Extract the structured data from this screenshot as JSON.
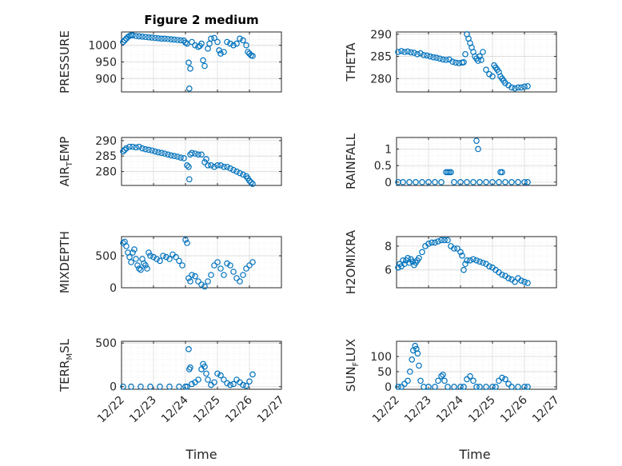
{
  "figure": {
    "title": "Figure 2 medium",
    "marker_color": "#0072BD",
    "x_tick_labels": [
      "12/22",
      "12/23",
      "12/24",
      "12/25",
      "12/26",
      "12/27"
    ],
    "xlabel": "Time"
  },
  "chart_data": [
    {
      "type": "scatter",
      "ylabel": "PRESSURE",
      "ylabel_parts": [
        {
          "text": "PRESSURE",
          "sub": false
        }
      ],
      "title": "Figure 2 medium",
      "xlim": [
        0,
        5
      ],
      "ylim": [
        860,
        1040
      ],
      "yticks": [
        900,
        950,
        1000
      ],
      "grid": true,
      "x": [
        0.05,
        0.1,
        0.15,
        0.2,
        0.25,
        0.3,
        0.35,
        0.45,
        0.55,
        0.65,
        0.75,
        0.85,
        0.95,
        1.05,
        1.15,
        1.25,
        1.35,
        1.45,
        1.55,
        1.65,
        1.75,
        1.85,
        1.95,
        2.0,
        2.05,
        2.1,
        2.12,
        2.15,
        2.2,
        2.3,
        2.4,
        2.45,
        2.5,
        2.55,
        2.6,
        2.7,
        2.75,
        2.8,
        2.9,
        3.0,
        3.05,
        3.1,
        3.2,
        3.3,
        3.4,
        3.5,
        3.6,
        3.7,
        3.8,
        3.9,
        3.95,
        4.0,
        4.05,
        4.1
      ],
      "y": [
        1010,
        1015,
        1020,
        1025,
        1028,
        1030,
        1030,
        1028,
        1027,
        1026,
        1025,
        1024,
        1023,
        1022,
        1021,
        1020,
        1020,
        1019,
        1018,
        1017,
        1016,
        1015,
        1014,
        1008,
        1005,
        948,
        870,
        930,
        1010,
        1000,
        995,
        998,
        1005,
        955,
        938,
        990,
        1005,
        1020,
        1022,
        1010,
        985,
        975,
        980,
        1010,
        1005,
        1000,
        1005,
        1020,
        1015,
        1000,
        980,
        975,
        970,
        968
      ]
    },
    {
      "type": "scatter",
      "ylabel": "THETA",
      "ylabel_parts": [
        {
          "text": "THETA",
          "sub": false
        }
      ],
      "xlim": [
        0,
        5
      ],
      "ylim": [
        277,
        290.5
      ],
      "yticks": [
        280,
        285,
        290
      ],
      "grid": true,
      "x": [
        0.05,
        0.15,
        0.25,
        0.35,
        0.45,
        0.55,
        0.65,
        0.75,
        0.85,
        0.95,
        1.05,
        1.15,
        1.25,
        1.35,
        1.45,
        1.55,
        1.65,
        1.75,
        1.85,
        1.95,
        2.05,
        2.1,
        2.15,
        2.2,
        2.25,
        2.3,
        2.35,
        2.4,
        2.45,
        2.5,
        2.55,
        2.6,
        2.65,
        2.7,
        2.8,
        2.9,
        3.0,
        3.05,
        3.1,
        3.15,
        3.2,
        3.25,
        3.3,
        3.35,
        3.4,
        3.5,
        3.6,
        3.7,
        3.8,
        3.9,
        4.0,
        4.1
      ],
      "y": [
        286,
        286.2,
        286,
        286.1,
        285.9,
        285.8,
        285.5,
        285.7,
        285.3,
        285.2,
        285,
        284.8,
        284.7,
        284.5,
        284.3,
        284.2,
        284.3,
        283.8,
        283.6,
        283.5,
        283.6,
        283.7,
        285.5,
        290,
        289,
        288,
        287,
        286,
        285,
        284.5,
        284,
        285,
        284.2,
        286,
        282,
        281,
        280.5,
        283,
        282.5,
        282,
        281.5,
        280.5,
        280,
        279.5,
        279,
        278.5,
        278,
        277.8,
        278,
        278,
        278.2,
        278.3
      ]
    },
    {
      "type": "scatter",
      "ylabel": "AIR_TEMP",
      "ylabel_parts": [
        {
          "text": "AIR",
          "sub": false
        },
        {
          "text": "T",
          "sub": true
        },
        {
          "text": "EMP",
          "sub": false
        }
      ],
      "xlim": [
        0,
        5
      ],
      "ylim": [
        275.5,
        291
      ],
      "yticks": [
        280,
        285,
        290
      ],
      "grid": true,
      "x": [
        0.05,
        0.1,
        0.15,
        0.25,
        0.35,
        0.45,
        0.55,
        0.65,
        0.75,
        0.85,
        0.95,
        1.05,
        1.15,
        1.25,
        1.35,
        1.45,
        1.55,
        1.65,
        1.75,
        1.85,
        1.95,
        2.05,
        2.1,
        2.12,
        2.15,
        2.2,
        2.3,
        2.4,
        2.5,
        2.6,
        2.65,
        2.7,
        2.8,
        2.9,
        3.0,
        3.1,
        3.2,
        3.3,
        3.4,
        3.5,
        3.6,
        3.7,
        3.8,
        3.9,
        3.95,
        4.0,
        4.05,
        4.1
      ],
      "y": [
        286.5,
        287,
        287.5,
        288,
        288,
        287.8,
        288,
        287.5,
        287.2,
        287,
        286.8,
        286.5,
        286.2,
        286,
        285.8,
        285.5,
        285.2,
        285,
        284.8,
        284.5,
        284.3,
        282,
        281.5,
        277.5,
        285.5,
        286,
        285.8,
        285.5,
        285.5,
        283,
        284,
        282,
        282,
        281.5,
        282,
        282,
        281.5,
        281.5,
        281,
        280.5,
        280,
        279.5,
        279,
        278.5,
        277.8,
        277,
        276.5,
        276
      ]
    },
    {
      "type": "scatter",
      "ylabel": "RAINFALL",
      "ylabel_parts": [
        {
          "text": "RAINFALL",
          "sub": false
        }
      ],
      "xlim": [
        0,
        5
      ],
      "ylim": [
        -0.1,
        1.35
      ],
      "yticks": [
        0,
        0.5,
        1
      ],
      "grid": true,
      "x": [
        0.05,
        0.2,
        0.4,
        0.6,
        0.8,
        1.0,
        1.2,
        1.4,
        1.55,
        1.6,
        1.65,
        1.7,
        1.8,
        2.0,
        2.2,
        2.4,
        2.5,
        2.55,
        2.6,
        2.8,
        3.0,
        3.2,
        3.25,
        3.3,
        3.4,
        3.6,
        3.8,
        4.0,
        4.1
      ],
      "y": [
        0,
        0,
        0,
        0,
        0,
        0,
        0,
        0,
        0.3,
        0.3,
        0.3,
        0.3,
        0,
        0,
        0,
        0,
        1.25,
        1.0,
        0,
        0,
        0,
        0,
        0.3,
        0.3,
        0,
        0,
        0,
        0,
        0
      ]
    },
    {
      "type": "scatter",
      "ylabel": "MIXDEPTH",
      "ylabel_parts": [
        {
          "text": "MIXDEPTH",
          "sub": false
        }
      ],
      "xlim": [
        0,
        5
      ],
      "ylim": [
        0,
        800
      ],
      "yticks": [
        0,
        500
      ],
      "grid": true,
      "x": [
        0.05,
        0.1,
        0.15,
        0.2,
        0.25,
        0.3,
        0.35,
        0.4,
        0.45,
        0.5,
        0.55,
        0.6,
        0.65,
        0.7,
        0.75,
        0.8,
        0.85,
        0.9,
        1.0,
        1.1,
        1.2,
        1.3,
        1.4,
        1.5,
        1.6,
        1.7,
        1.8,
        1.9,
        2.0,
        2.05,
        2.1,
        2.15,
        2.2,
        2.3,
        2.4,
        2.5,
        2.6,
        2.7,
        2.8,
        2.9,
        3.0,
        3.1,
        3.2,
        3.3,
        3.4,
        3.5,
        3.6,
        3.7,
        3.8,
        3.9,
        4.0,
        4.1
      ],
      "y": [
        700,
        720,
        650,
        550,
        480,
        400,
        550,
        600,
        450,
        350,
        300,
        280,
        450,
        380,
        350,
        300,
        550,
        500,
        480,
        450,
        420,
        500,
        480,
        450,
        520,
        480,
        420,
        350,
        750,
        700,
        150,
        100,
        200,
        180,
        100,
        50,
        20,
        100,
        200,
        350,
        400,
        300,
        200,
        380,
        350,
        250,
        150,
        100,
        200,
        300,
        350,
        400
      ]
    },
    {
      "type": "scatter",
      "ylabel": "H2OMIXRA",
      "ylabel_parts": [
        {
          "text": "H2OMIXRA",
          "sub": false
        }
      ],
      "xlim": [
        0,
        5
      ],
      "ylim": [
        4.5,
        8.8
      ],
      "yticks": [
        6,
        8
      ],
      "grid": true,
      "x": [
        0.05,
        0.1,
        0.15,
        0.2,
        0.25,
        0.3,
        0.35,
        0.4,
        0.45,
        0.5,
        0.55,
        0.6,
        0.65,
        0.7,
        0.8,
        0.9,
        1.0,
        1.1,
        1.2,
        1.3,
        1.4,
        1.5,
        1.6,
        1.7,
        1.8,
        1.9,
        2.0,
        2.05,
        2.1,
        2.15,
        2.2,
        2.3,
        2.4,
        2.5,
        2.6,
        2.7,
        2.8,
        2.9,
        3.0,
        3.1,
        3.2,
        3.3,
        3.4,
        3.5,
        3.6,
        3.7,
        3.8,
        3.9,
        4.0,
        4.1
      ],
      "y": [
        6.2,
        6.5,
        6.3,
        6.8,
        6.5,
        6.8,
        7.0,
        6.6,
        6.9,
        6.7,
        6.4,
        6.6,
        6.8,
        7.0,
        7.5,
        8.0,
        8.2,
        8.3,
        8.3,
        8.4,
        8.5,
        8.5,
        8.5,
        8.0,
        7.8,
        7.8,
        7.5,
        7.2,
        6.0,
        6.5,
        6.8,
        6.8,
        6.9,
        6.8,
        6.7,
        6.6,
        6.5,
        6.3,
        6.2,
        6.0,
        5.8,
        5.6,
        5.5,
        5.3,
        5.2,
        5.0,
        5.3,
        5.1,
        5.0,
        4.9
      ]
    },
    {
      "type": "scatter",
      "ylabel": "TERR_MSL",
      "ylabel_parts": [
        {
          "text": "TERR",
          "sub": false
        },
        {
          "text": "M",
          "sub": true
        },
        {
          "text": "SL",
          "sub": false
        }
      ],
      "xlim": [
        0,
        5
      ],
      "ylim": [
        -30,
        520
      ],
      "yticks": [
        0,
        500
      ],
      "grid": true,
      "x": [
        0.05,
        0.3,
        0.6,
        0.9,
        1.2,
        1.5,
        1.8,
        2.0,
        2.05,
        2.1,
        2.12,
        2.15,
        2.2,
        2.3,
        2.4,
        2.5,
        2.55,
        2.6,
        2.65,
        2.7,
        2.8,
        2.9,
        3.0,
        3.1,
        3.2,
        3.3,
        3.4,
        3.5,
        3.6,
        3.7,
        3.8,
        3.9,
        4.0,
        4.1
      ],
      "y": [
        0,
        0,
        0,
        0,
        0,
        0,
        0,
        0,
        0,
        430,
        200,
        220,
        30,
        50,
        80,
        200,
        260,
        230,
        150,
        80,
        20,
        50,
        150,
        130,
        80,
        40,
        20,
        30,
        80,
        50,
        20,
        10,
        60,
        140
      ]
    },
    {
      "type": "scatter",
      "ylabel": "SUN_FLUX",
      "ylabel_parts": [
        {
          "text": "SUN",
          "sub": false
        },
        {
          "text": "F",
          "sub": true
        },
        {
          "text": "LUX",
          "sub": false
        }
      ],
      "xlim": [
        0,
        5
      ],
      "ylim": [
        -8,
        150
      ],
      "yticks": [
        0,
        50,
        100
      ],
      "grid": true,
      "x": [
        0.05,
        0.15,
        0.25,
        0.35,
        0.42,
        0.48,
        0.52,
        0.58,
        0.62,
        0.66,
        0.7,
        0.75,
        0.85,
        1.0,
        1.2,
        1.3,
        1.4,
        1.45,
        1.5,
        1.6,
        1.8,
        2.0,
        2.1,
        2.2,
        2.3,
        2.4,
        2.5,
        2.6,
        2.8,
        3.0,
        3.1,
        3.2,
        3.3,
        3.4,
        3.5,
        3.6,
        3.8,
        4.0,
        4.1
      ],
      "y": [
        0,
        0,
        10,
        20,
        50,
        90,
        120,
        135,
        125,
        110,
        70,
        20,
        0,
        0,
        0,
        20,
        35,
        40,
        20,
        0,
        0,
        0,
        0,
        25,
        35,
        20,
        0,
        0,
        0,
        0,
        0,
        20,
        30,
        25,
        10,
        0,
        0,
        0,
        0
      ]
    }
  ]
}
